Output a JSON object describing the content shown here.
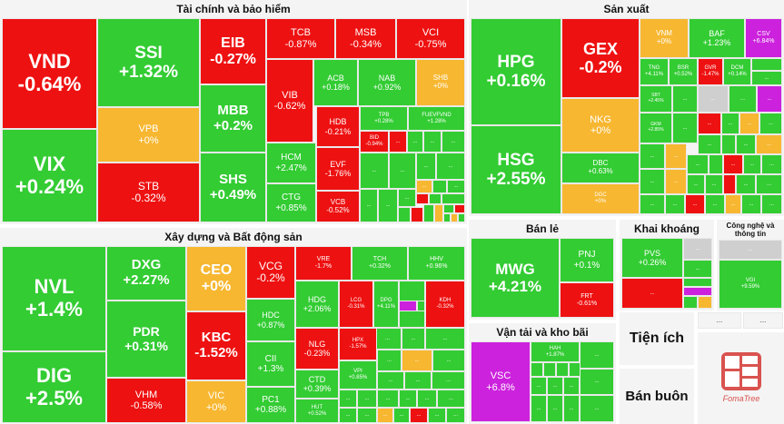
{
  "colors": {
    "up": "#33cc33",
    "down": "#ee1111",
    "flat": "#f7b731",
    "ceil": "#cc22dd",
    "other": "#cfcfcf"
  },
  "brand": {
    "name": "FomaTree"
  },
  "sectors": [
    {
      "title": "Tài chính và bảo hiểm",
      "stocks": [
        {
          "ticker": "VND",
          "change": "-0.64%",
          "status": "down"
        },
        {
          "ticker": "VIX",
          "change": "+0.24%",
          "status": "up"
        },
        {
          "ticker": "SSI",
          "change": "+1.32%",
          "status": "up"
        },
        {
          "ticker": "VPB",
          "change": "+0%",
          "status": "flat"
        },
        {
          "ticker": "STB",
          "change": "-0.32%",
          "status": "down"
        },
        {
          "ticker": "EIB",
          "change": "-0.27%",
          "status": "down"
        },
        {
          "ticker": "MBB",
          "change": "+0.2%",
          "status": "up"
        },
        {
          "ticker": "SHS",
          "change": "+0.49%",
          "status": "up"
        },
        {
          "ticker": "TCB",
          "change": "-0.87%",
          "status": "down"
        },
        {
          "ticker": "MSB",
          "change": "-0.34%",
          "status": "down"
        },
        {
          "ticker": "VCI",
          "change": "-0.75%",
          "status": "down"
        },
        {
          "ticker": "VIB",
          "change": "-0.62%",
          "status": "down"
        },
        {
          "ticker": "ACB",
          "change": "+0.18%",
          "status": "up"
        },
        {
          "ticker": "NAB",
          "change": "+0.92%",
          "status": "up"
        },
        {
          "ticker": "SHB",
          "change": "+0%",
          "status": "flat"
        },
        {
          "ticker": "HCM",
          "change": "+2.47%",
          "status": "up"
        },
        {
          "ticker": "CTG",
          "change": "+0.85%",
          "status": "up"
        },
        {
          "ticker": "HDB",
          "change": "-0.21%",
          "status": "down"
        },
        {
          "ticker": "EVF",
          "change": "-1.76%",
          "status": "down"
        },
        {
          "ticker": "VCB",
          "change": "-0.52%",
          "status": "down"
        },
        {
          "ticker": "TPB",
          "change": "+0.28%",
          "status": "up"
        },
        {
          "ticker": "FUEVFVND",
          "change": "+1.28%",
          "status": "up"
        },
        {
          "ticker": "BID",
          "change": "-0.94%",
          "status": "down"
        }
      ]
    },
    {
      "title": "Sản xuất",
      "stocks": [
        {
          "ticker": "HPG",
          "change": "+0.16%",
          "status": "up"
        },
        {
          "ticker": "HSG",
          "change": "+2.55%",
          "status": "up"
        },
        {
          "ticker": "GEX",
          "change": "-0.2%",
          "status": "down"
        },
        {
          "ticker": "NKG",
          "change": "+0%",
          "status": "flat"
        },
        {
          "ticker": "DBC",
          "change": "+0.63%",
          "status": "up"
        },
        {
          "ticker": "DGC",
          "change": "+0%",
          "status": "flat"
        },
        {
          "ticker": "VNM",
          "change": "+0%",
          "status": "flat"
        },
        {
          "ticker": "BAF",
          "change": "+1.23%",
          "status": "up"
        },
        {
          "ticker": "CSV",
          "change": "+6.84%",
          "status": "ceil"
        },
        {
          "ticker": "TNG",
          "change": "+4.11%",
          "status": "up"
        },
        {
          "ticker": "BSR",
          "change": "+0.52%",
          "status": "up"
        },
        {
          "ticker": "GVR",
          "change": "-1.47%",
          "status": "down"
        },
        {
          "ticker": "DCM",
          "change": "+0.14%",
          "status": "up"
        },
        {
          "ticker": "SBT",
          "change": "+2.45%",
          "status": "up"
        },
        {
          "ticker": "GKM",
          "change": "+2.85%",
          "status": "up"
        }
      ]
    },
    {
      "title": "Xây dựng và Bất động sản",
      "stocks": [
        {
          "ticker": "NVL",
          "change": "+1.4%",
          "status": "up"
        },
        {
          "ticker": "DIG",
          "change": "+2.5%",
          "status": "up"
        },
        {
          "ticker": "DXG",
          "change": "+2.27%",
          "status": "up"
        },
        {
          "ticker": "PDR",
          "change": "+0.31%",
          "status": "up"
        },
        {
          "ticker": "VHM",
          "change": "-0.58%",
          "status": "down"
        },
        {
          "ticker": "CEO",
          "change": "+0%",
          "status": "flat"
        },
        {
          "ticker": "KBC",
          "change": "-1.52%",
          "status": "down"
        },
        {
          "ticker": "VIC",
          "change": "+0%",
          "status": "flat"
        },
        {
          "ticker": "VCG",
          "change": "-0.2%",
          "status": "down"
        },
        {
          "ticker": "HDC",
          "change": "+0.87%",
          "status": "up"
        },
        {
          "ticker": "CII",
          "change": "+1.3%",
          "status": "up"
        },
        {
          "ticker": "PC1",
          "change": "+0.88%",
          "status": "up"
        },
        {
          "ticker": "VRE",
          "change": "-1.7%",
          "status": "down"
        },
        {
          "ticker": "TCH",
          "change": "+0.32%",
          "status": "up"
        },
        {
          "ticker": "HHV",
          "change": "+0.96%",
          "status": "up"
        },
        {
          "ticker": "HDG",
          "change": "+2.06%",
          "status": "up"
        },
        {
          "ticker": "LCG",
          "change": "-0.31%",
          "status": "down"
        },
        {
          "ticker": "DPG",
          "change": "+4.11%",
          "status": "up"
        },
        {
          "ticker": "KDH",
          "change": "-0.32%",
          "status": "down"
        },
        {
          "ticker": "NLG",
          "change": "-0.23%",
          "status": "down"
        },
        {
          "ticker": "HPX",
          "change": "-1.57%",
          "status": "down"
        },
        {
          "ticker": "VPI",
          "change": "+0.85%",
          "status": "up"
        },
        {
          "ticker": "CTD",
          "change": "+0.39%",
          "status": "up"
        },
        {
          "ticker": "HUT",
          "change": "+0.52%",
          "status": "up"
        }
      ]
    },
    {
      "title": "Bán lẻ",
      "stocks": [
        {
          "ticker": "MWG",
          "change": "+4.21%",
          "status": "up"
        },
        {
          "ticker": "PNJ",
          "change": "+0.1%",
          "status": "up"
        },
        {
          "ticker": "FRT",
          "change": "-0.61%",
          "status": "down"
        }
      ]
    },
    {
      "title": "Vận tải và kho bãi",
      "stocks": [
        {
          "ticker": "VSC",
          "change": "+6.8%",
          "status": "ceil"
        },
        {
          "ticker": "HAH",
          "change": "+1.87%",
          "status": "up"
        }
      ]
    },
    {
      "title": "Khai khoáng",
      "stocks": [
        {
          "ticker": "PVS",
          "change": "+0.26%",
          "status": "up"
        }
      ]
    },
    {
      "title": "Công nghệ và thông tin",
      "stocks": [
        {
          "ticker": "VGI",
          "change": "+9.59%",
          "status": "up"
        }
      ]
    },
    {
      "title": "Tiện ích",
      "stocks": []
    },
    {
      "title": "Bán buôn",
      "stocks": []
    }
  ],
  "ellipsis": "..."
}
